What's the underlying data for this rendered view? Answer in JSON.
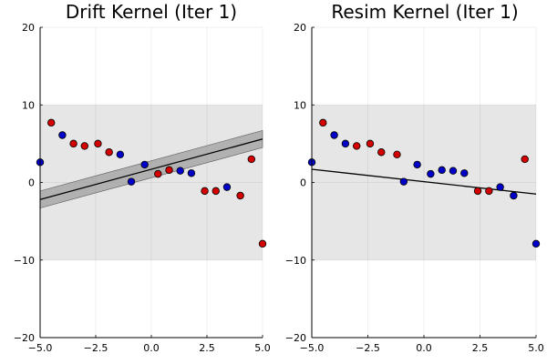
{
  "chart_data": [
    {
      "type": "scatter",
      "title": "Drift Kernel (Iter 1)",
      "xlabel": "",
      "ylabel": "",
      "xlim": [
        -5,
        5
      ],
      "ylim": [
        -20,
        20
      ],
      "xticks": [
        -5,
        -2.5,
        0,
        2.5,
        5
      ],
      "xtick_labels": [
        "−5.0",
        "−2.5",
        "0.0",
        "2.5",
        "5.0"
      ],
      "yticks": [
        -20,
        -10,
        0,
        10,
        20
      ],
      "ytick_labels": [
        "−20",
        "−10",
        "0",
        "10",
        "20"
      ],
      "grid": true,
      "shaded_band": {
        "y_min": -10,
        "y_max": 10,
        "color": "#e6e6e6"
      },
      "fit_line": {
        "x": [
          -5,
          5
        ],
        "y": [
          -2.2,
          5.6
        ],
        "color": "#000000"
      },
      "confidence_band": {
        "x": [
          -5,
          5
        ],
        "lower": [
          -3.3,
          4.5
        ],
        "upper": [
          -1.1,
          6.7
        ],
        "color": "#9a9a9a"
      },
      "series": [
        {
          "name": "red",
          "color": "#d40000",
          "x": [
            -4.5,
            -3.5,
            -3.0,
            -2.4,
            -1.9,
            0.3,
            0.8,
            2.4,
            2.9,
            4.0,
            4.5,
            5.0
          ],
          "y": [
            7.7,
            5.0,
            4.7,
            5.0,
            3.9,
            1.1,
            1.6,
            -1.1,
            -1.1,
            -1.7,
            3.0,
            -7.9
          ]
        },
        {
          "name": "blue",
          "color": "#0000c8",
          "x": [
            -5.0,
            -4.0,
            -1.4,
            -0.9,
            -0.3,
            1.3,
            1.8,
            3.4
          ],
          "y": [
            2.6,
            6.1,
            3.6,
            0.1,
            2.3,
            1.5,
            1.2,
            -0.6
          ]
        }
      ]
    },
    {
      "type": "scatter",
      "title": "Resim Kernel (Iter 1)",
      "xlabel": "",
      "ylabel": "",
      "xlim": [
        -5,
        5
      ],
      "ylim": [
        -20,
        20
      ],
      "xticks": [
        -5,
        -2.5,
        0,
        2.5,
        5
      ],
      "xtick_labels": [
        "−5.0",
        "−2.5",
        "0.0",
        "2.5",
        "5.0"
      ],
      "yticks": [
        -20,
        -10,
        0,
        10,
        20
      ],
      "ytick_labels": [
        "−20",
        "−10",
        "0",
        "10",
        "20"
      ],
      "grid": true,
      "shaded_band": {
        "y_min": -10,
        "y_max": 10,
        "color": "#e6e6e6"
      },
      "fit_line": {
        "x": [
          -5,
          5
        ],
        "y": [
          1.7,
          -1.5
        ],
        "color": "#000000"
      },
      "series": [
        {
          "name": "red",
          "color": "#d40000",
          "x": [
            -4.5,
            -3.0,
            -2.4,
            -1.9,
            -1.2,
            2.4,
            2.9,
            4.5
          ],
          "y": [
            7.7,
            4.7,
            5.0,
            3.9,
            3.6,
            -1.1,
            -1.1,
            3.0
          ]
        },
        {
          "name": "blue",
          "color": "#0000c8",
          "x": [
            -5.0,
            -4.0,
            -3.5,
            -0.9,
            -0.3,
            0.3,
            0.8,
            1.3,
            1.8,
            3.4,
            4.0,
            5.0
          ],
          "y": [
            2.6,
            6.1,
            5.0,
            0.1,
            2.3,
            1.1,
            1.6,
            1.5,
            1.2,
            -0.6,
            -1.7,
            -7.9
          ]
        }
      ]
    }
  ]
}
